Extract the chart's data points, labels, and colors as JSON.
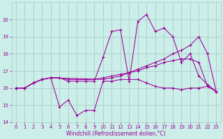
{
  "bg_color": "#cceee8",
  "grid_color": "#aacccc",
  "line_color": "#990099",
  "xlabel": "Windchill (Refroidissement éolien,°C)",
  "xlim": [
    -0.5,
    23.5
  ],
  "ylim": [
    14,
    21
  ],
  "yticks": [
    14,
    15,
    16,
    17,
    18,
    19,
    20
  ],
  "xticks": [
    0,
    1,
    2,
    3,
    4,
    5,
    6,
    7,
    8,
    9,
    10,
    11,
    12,
    13,
    14,
    15,
    16,
    17,
    18,
    19,
    20,
    21,
    22,
    23
  ],
  "line1_x": [
    0,
    1,
    2,
    3,
    4,
    5,
    6,
    7,
    8,
    9,
    10,
    11,
    12,
    13,
    14,
    15,
    16,
    17,
    18,
    19,
    20,
    21,
    22,
    23
  ],
  "line1_y": [
    16.0,
    16.0,
    16.3,
    16.5,
    16.6,
    16.6,
    16.5,
    16.5,
    16.5,
    16.5,
    16.6,
    16.7,
    16.8,
    16.9,
    17.0,
    17.2,
    17.3,
    17.5,
    17.6,
    17.7,
    17.7,
    17.5,
    16.1,
    15.8
  ],
  "line2_x": [
    0,
    1,
    2,
    3,
    4,
    5,
    6,
    7,
    8,
    9,
    10,
    11,
    12,
    13,
    14,
    15,
    16,
    17,
    18,
    19,
    20,
    21,
    22,
    23
  ],
  "line2_y": [
    16.0,
    16.0,
    16.3,
    16.5,
    16.6,
    14.9,
    15.3,
    14.4,
    14.7,
    14.7,
    16.4,
    16.4,
    16.5,
    16.5,
    16.5,
    16.3,
    16.1,
    16.0,
    16.0,
    15.9,
    16.0,
    16.0,
    16.1,
    15.8
  ],
  "line3_x": [
    0,
    1,
    2,
    3,
    4,
    5,
    6,
    7,
    8,
    9,
    10,
    11,
    12,
    13,
    14,
    15,
    16,
    17,
    18,
    19,
    20,
    21,
    22,
    23
  ],
  "line3_y": [
    16.0,
    16.0,
    16.3,
    16.5,
    16.6,
    16.6,
    16.4,
    16.4,
    16.4,
    16.4,
    17.8,
    19.3,
    19.4,
    16.4,
    19.9,
    20.3,
    19.3,
    19.5,
    19.0,
    17.5,
    18.0,
    16.7,
    16.2,
    15.8
  ],
  "line4_x": [
    0,
    1,
    2,
    3,
    4,
    10,
    11,
    12,
    13,
    14,
    15,
    16,
    17,
    18,
    19,
    20,
    21,
    22,
    23
  ],
  "line4_y": [
    16.0,
    16.0,
    16.3,
    16.5,
    16.6,
    16.5,
    16.6,
    16.7,
    16.9,
    17.1,
    17.3,
    17.5,
    17.7,
    18.0,
    18.2,
    18.5,
    19.0,
    18.0,
    15.8
  ]
}
